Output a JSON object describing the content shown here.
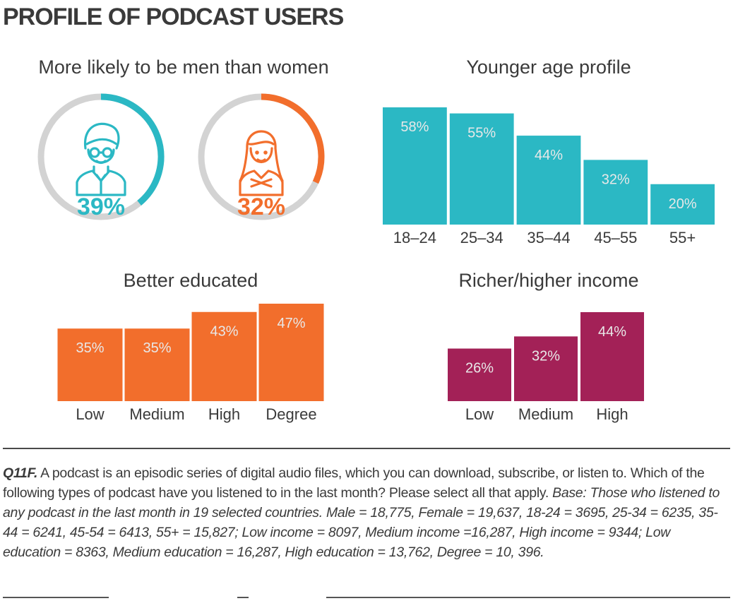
{
  "title": "PROFILE OF PODCAST USERS",
  "colors": {
    "teal": "#2bb8c4",
    "orange": "#f26e2c",
    "plum": "#a32157",
    "ring_grey": "#d3d3d3",
    "label_on_bar": "#e8e8e8"
  },
  "chart_data": [
    {
      "type": "pie",
      "title": "More likely to be men than women",
      "slices": [
        {
          "name": "Men",
          "icon": "man-icon",
          "value": 39,
          "label": "39%",
          "color": "#2bb8c4"
        },
        {
          "name": "Women",
          "icon": "woman-icon",
          "value": 32,
          "label": "32%",
          "color": "#f26e2c"
        }
      ]
    },
    {
      "type": "bar",
      "title": "Younger age profile",
      "categories": [
        "18–24",
        "25–34",
        "35–44",
        "45–55",
        "55+"
      ],
      "values": [
        58,
        55,
        44,
        32,
        20
      ],
      "labels": [
        "58%",
        "55%",
        "44%",
        "32%",
        "20%"
      ],
      "color": "#2bb8c4",
      "ylim": [
        0,
        58
      ]
    },
    {
      "type": "bar",
      "title": "Better educated",
      "categories": [
        "Low",
        "Medium",
        "High",
        "Degree"
      ],
      "values": [
        35,
        35,
        43,
        47
      ],
      "labels": [
        "35%",
        "35%",
        "43%",
        "47%"
      ],
      "color": "#f26e2c",
      "ylim": [
        0,
        47
      ]
    },
    {
      "type": "bar",
      "title": "Richer/higher income",
      "categories": [
        "Low",
        "Medium",
        "High"
      ],
      "values": [
        26,
        32,
        44
      ],
      "labels": [
        "26%",
        "32%",
        "44%"
      ],
      "color": "#a32157",
      "ylim": [
        0,
        44
      ]
    }
  ],
  "footnote": {
    "question_label": "Q11F.",
    "question_text": " A podcast is an episodic series of digital audio files, which you can download, subscribe, or listen to. Which of the following types of podcast have you listened to in the last month? Please select all that apply. ",
    "base_label": "Base:",
    "base_text": " Those who listened to any podcast in the last month in 19 selected countries. ",
    "sample_text": "Male = 18,775, Female = 19,637, 18-24 = 3695, 25-34 = 6235, 35-44 = 6241, 45-54 = 6413, 55+ = 15,827; Low income = 8097, Medium income =16,287, High income = 9344; Low education = 8363, Medium education = 16,287, High education = 13,762, Degree = 10, 396."
  }
}
